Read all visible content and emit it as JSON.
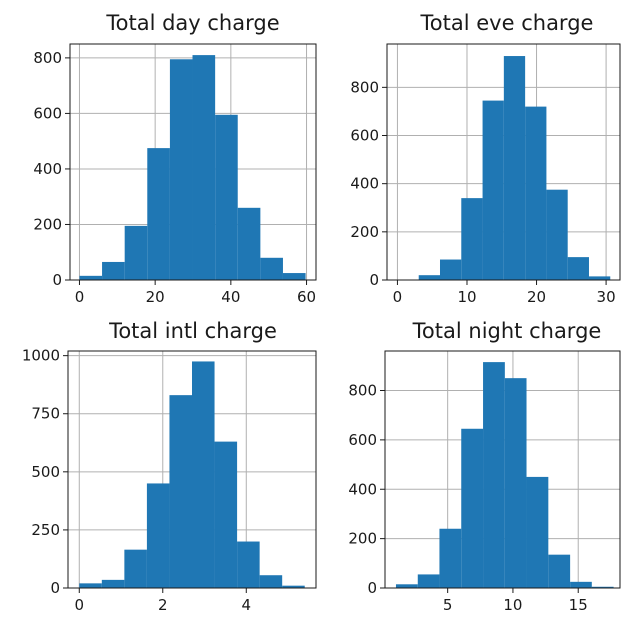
{
  "colors": {
    "bar": "#1f77b4",
    "grid": "#b0b0b0",
    "frame": "#1a1a1a"
  },
  "chart_data": [
    {
      "type": "bar",
      "title": "Total day charge",
      "grid": true,
      "xlim": [
        -2.5,
        62.5
      ],
      "ylim": [
        0,
        850
      ],
      "xticks": [
        0,
        20,
        40,
        60
      ],
      "yticks": [
        0,
        200,
        400,
        600,
        800
      ],
      "bins": [
        {
          "x0": 0.0,
          "x1": 5.97,
          "value": 15
        },
        {
          "x0": 5.97,
          "x1": 11.95,
          "value": 65
        },
        {
          "x0": 11.95,
          "x1": 17.92,
          "value": 195
        },
        {
          "x0": 17.92,
          "x1": 23.9,
          "value": 475
        },
        {
          "x0": 23.9,
          "x1": 29.87,
          "value": 795
        },
        {
          "x0": 29.87,
          "x1": 35.85,
          "value": 810
        },
        {
          "x0": 35.85,
          "x1": 41.82,
          "value": 595
        },
        {
          "x0": 41.82,
          "x1": 47.8,
          "value": 260
        },
        {
          "x0": 47.8,
          "x1": 53.77,
          "value": 80
        },
        {
          "x0": 53.77,
          "x1": 59.75,
          "value": 25
        }
      ]
    },
    {
      "type": "bar",
      "title": "Total eve charge",
      "grid": true,
      "xlim": [
        -1.5,
        32.0
      ],
      "ylim": [
        0,
        980
      ],
      "xticks": [
        0,
        10,
        20,
        30
      ],
      "yticks": [
        0,
        200,
        400,
        600,
        800
      ],
      "bins": [
        {
          "x0": 0.0,
          "x1": 3.06,
          "value": 2
        },
        {
          "x0": 3.06,
          "x1": 6.12,
          "value": 20
        },
        {
          "x0": 6.12,
          "x1": 9.18,
          "value": 85
        },
        {
          "x0": 9.18,
          "x1": 12.24,
          "value": 340
        },
        {
          "x0": 12.24,
          "x1": 15.3,
          "value": 745
        },
        {
          "x0": 15.3,
          "x1": 18.36,
          "value": 930
        },
        {
          "x0": 18.36,
          "x1": 21.42,
          "value": 720
        },
        {
          "x0": 21.42,
          "x1": 24.48,
          "value": 375
        },
        {
          "x0": 24.48,
          "x1": 27.54,
          "value": 95
        },
        {
          "x0": 27.54,
          "x1": 30.6,
          "value": 15
        }
      ]
    },
    {
      "type": "bar",
      "title": "Total intl charge",
      "grid": true,
      "xlim": [
        -0.27,
        5.67
      ],
      "ylim": [
        0,
        1020
      ],
      "xticks": [
        0,
        2,
        4
      ],
      "yticks": [
        0,
        250,
        500,
        750,
        1000
      ],
      "ytick_labels": [
        "0",
        "250",
        "500",
        "750",
        "1000"
      ],
      "bins": [
        {
          "x0": 0.0,
          "x1": 0.54,
          "value": 20
        },
        {
          "x0": 0.54,
          "x1": 1.08,
          "value": 35
        },
        {
          "x0": 1.08,
          "x1": 1.62,
          "value": 165
        },
        {
          "x0": 1.62,
          "x1": 2.16,
          "value": 450
        },
        {
          "x0": 2.16,
          "x1": 2.7,
          "value": 830
        },
        {
          "x0": 2.7,
          "x1": 3.24,
          "value": 975
        },
        {
          "x0": 3.24,
          "x1": 3.78,
          "value": 630
        },
        {
          "x0": 3.78,
          "x1": 4.32,
          "value": 200
        },
        {
          "x0": 4.32,
          "x1": 4.86,
          "value": 55
        },
        {
          "x0": 4.86,
          "x1": 5.4,
          "value": 10
        }
      ]
    },
    {
      "type": "bar",
      "title": "Total night charge",
      "grid": true,
      "xlim": [
        0.2,
        18.2
      ],
      "ylim": [
        0,
        960
      ],
      "xticks": [
        5,
        10,
        15
      ],
      "yticks": [
        0,
        200,
        400,
        600,
        800
      ],
      "bins": [
        {
          "x0": 1.04,
          "x1": 2.71,
          "value": 15
        },
        {
          "x0": 2.71,
          "x1": 4.37,
          "value": 55
        },
        {
          "x0": 4.37,
          "x1": 6.04,
          "value": 240
        },
        {
          "x0": 6.04,
          "x1": 7.71,
          "value": 645
        },
        {
          "x0": 7.71,
          "x1": 9.38,
          "value": 915
        },
        {
          "x0": 9.38,
          "x1": 11.04,
          "value": 850
        },
        {
          "x0": 11.04,
          "x1": 12.71,
          "value": 450
        },
        {
          "x0": 12.71,
          "x1": 14.38,
          "value": 135
        },
        {
          "x0": 14.38,
          "x1": 16.04,
          "value": 25
        },
        {
          "x0": 16.04,
          "x1": 17.71,
          "value": 5
        }
      ]
    }
  ]
}
